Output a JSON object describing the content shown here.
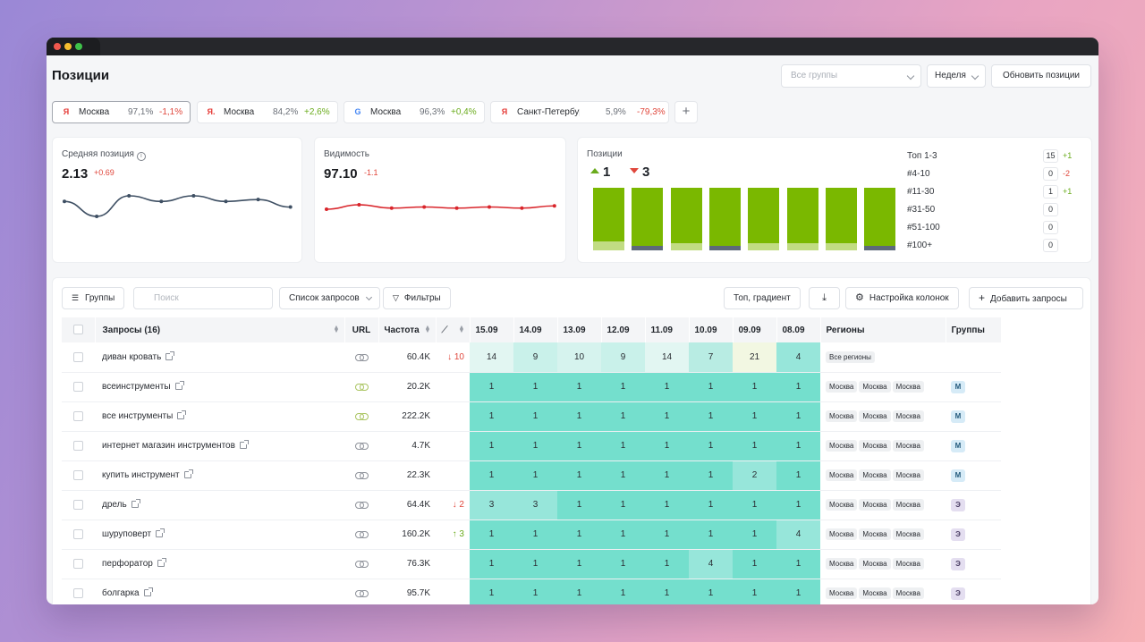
{
  "page": {
    "title": "Позиции"
  },
  "header": {
    "group_select_placeholder": "Все группы",
    "period": "Неделя",
    "update_button": "Обновить позиции"
  },
  "engines": [
    {
      "engine": "Я",
      "city": "Москва",
      "visibility": "97,1%",
      "delta": "-1,1%",
      "delta_sign": "neg",
      "active": true
    },
    {
      "engine": "Я.",
      "city": "Москва",
      "visibility": "84,2%",
      "delta": "+2,6%",
      "delta_sign": "pos",
      "active": false
    },
    {
      "engine": "G",
      "city": "Москва",
      "visibility": "96,3%",
      "delta": "+0,4%",
      "delta_sign": "pos",
      "active": false
    },
    {
      "engine": "Я",
      "city": "Санкт-Петербур...",
      "visibility": "5,9%",
      "delta": "-79,3%",
      "delta_sign": "neg",
      "active": false
    }
  ],
  "add_tab_label": "+",
  "avg_position": {
    "label": "Средняя позиция",
    "info_icon": "i",
    "value": "2.13",
    "delta": "+0.69",
    "sparkline": [
      2.6,
      3.4,
      2.3,
      2.6,
      2.3,
      2.6,
      2.5,
      2.9
    ]
  },
  "visibility": {
    "label": "Видимость",
    "value": "97.10",
    "delta": "-1.1",
    "sparkline": [
      97.4,
      97.0,
      97.3,
      97.2,
      97.3,
      97.2,
      97.3,
      97.1
    ]
  },
  "positions": {
    "label": "Позиции",
    "up": "1",
    "down": "3",
    "bars": [
      {
        "top": 85,
        "bottom": 15,
        "dark": false
      },
      {
        "top": 93,
        "bottom": 7,
        "dark": true
      },
      {
        "top": 88,
        "bottom": 12,
        "dark": false
      },
      {
        "top": 93,
        "bottom": 7,
        "dark": true
      },
      {
        "top": 88,
        "bottom": 12,
        "dark": false
      },
      {
        "top": 88,
        "bottom": 12,
        "dark": false
      },
      {
        "top": 88,
        "bottom": 12,
        "dark": false
      },
      {
        "top": 93,
        "bottom": 7,
        "dark": true
      }
    ],
    "buckets": [
      {
        "name": "Топ 1-3",
        "count": "15",
        "delta": "+1",
        "sign": "pos"
      },
      {
        "name": "#4-10",
        "count": "0",
        "delta": "-2",
        "sign": "neg"
      },
      {
        "name": "#11-30",
        "count": "1",
        "delta": "+1",
        "sign": "pos"
      },
      {
        "name": "#31-50",
        "count": "0",
        "delta": "",
        "sign": ""
      },
      {
        "name": "#51-100",
        "count": "0",
        "delta": "",
        "sign": ""
      },
      {
        "name": "#100+",
        "count": "0",
        "delta": "",
        "sign": ""
      }
    ]
  },
  "toolbar": {
    "groups": "Группы",
    "search_placeholder": "Поиск",
    "query_list": "Список запросов",
    "filters": "Фильтры",
    "top_gradient": "Топ, градиент",
    "columns_settings": "Настройка колонок",
    "add_queries": "Добавить запросы"
  },
  "table": {
    "headers": {
      "queries": "Запросы (16)",
      "url": "URL",
      "frequency": "Частота",
      "regions": "Регионы",
      "groups": "Группы"
    },
    "dates": [
      "15.09",
      "14.09",
      "13.09",
      "12.09",
      "11.09",
      "10.09",
      "09.09",
      "08.09"
    ],
    "rows": [
      {
        "query": "диван кровать",
        "link_alt": false,
        "freq": "60.4K",
        "trend": "↓ 10",
        "trend_sign": "neg",
        "positions": [
          14,
          9,
          10,
          9,
          14,
          7,
          21,
          4
        ],
        "regions": [
          "Все регионы"
        ],
        "group": ""
      },
      {
        "query": "всеинструменты",
        "link_alt": true,
        "freq": "20.2K",
        "trend": "",
        "trend_sign": "",
        "positions": [
          1,
          1,
          1,
          1,
          1,
          1,
          1,
          1
        ],
        "regions": [
          "Москва",
          "Москва",
          "Москва"
        ],
        "group": "М"
      },
      {
        "query": "все инструменты",
        "link_alt": true,
        "freq": "222.2K",
        "trend": "",
        "trend_sign": "",
        "positions": [
          1,
          1,
          1,
          1,
          1,
          1,
          1,
          1
        ],
        "regions": [
          "Москва",
          "Москва",
          "Москва"
        ],
        "group": "М"
      },
      {
        "query": "интернет магазин инструментов",
        "link_alt": false,
        "freq": "4.7K",
        "trend": "",
        "trend_sign": "",
        "positions": [
          1,
          1,
          1,
          1,
          1,
          1,
          1,
          1
        ],
        "regions": [
          "Москва",
          "Москва",
          "Москва"
        ],
        "group": "М"
      },
      {
        "query": "купить инструмент",
        "link_alt": false,
        "freq": "22.3K",
        "trend": "",
        "trend_sign": "",
        "positions": [
          1,
          1,
          1,
          1,
          1,
          1,
          2,
          1
        ],
        "regions": [
          "Москва",
          "Москва",
          "Москва"
        ],
        "group": "М"
      },
      {
        "query": "дрель",
        "link_alt": false,
        "freq": "64.4K",
        "trend": "↓ 2",
        "trend_sign": "neg",
        "positions": [
          3,
          3,
          1,
          1,
          1,
          1,
          1,
          1
        ],
        "regions": [
          "Москва",
          "Москва",
          "Москва"
        ],
        "group": "Э"
      },
      {
        "query": "шуруповерт",
        "link_alt": false,
        "freq": "160.2K",
        "trend": "↑ 3",
        "trend_sign": "pos",
        "positions": [
          1,
          1,
          1,
          1,
          1,
          1,
          1,
          4
        ],
        "regions": [
          "Москва",
          "Москва",
          "Москва"
        ],
        "group": "Э"
      },
      {
        "query": "перфоратор",
        "link_alt": false,
        "freq": "76.3K",
        "trend": "",
        "trend_sign": "",
        "positions": [
          1,
          1,
          1,
          1,
          1,
          4,
          1,
          1
        ],
        "regions": [
          "Москва",
          "Москва",
          "Москва"
        ],
        "group": "Э"
      },
      {
        "query": "болгарка",
        "link_alt": false,
        "freq": "95.7K",
        "trend": "",
        "trend_sign": "",
        "positions": [
          1,
          1,
          1,
          1,
          1,
          1,
          1,
          1
        ],
        "regions": [
          "Москва",
          "Москва",
          "Москва"
        ],
        "group": "Э"
      }
    ]
  },
  "colors": {
    "accent_green": "#7ab800",
    "accent_green_light": "#c1dc83",
    "bar_dark": "#5d6a7a",
    "negative": "#e0473c",
    "positive": "#6aab1c",
    "avg_line": "#3e4f63",
    "vis_line": "#d9252b",
    "cell_top": "#74dfcd",
    "cell_mid": "#97e6da",
    "cell_light": "#c9f1ea",
    "cell_faint": "#e2f6f2",
    "cell_yellow": "#f2f7e2"
  }
}
